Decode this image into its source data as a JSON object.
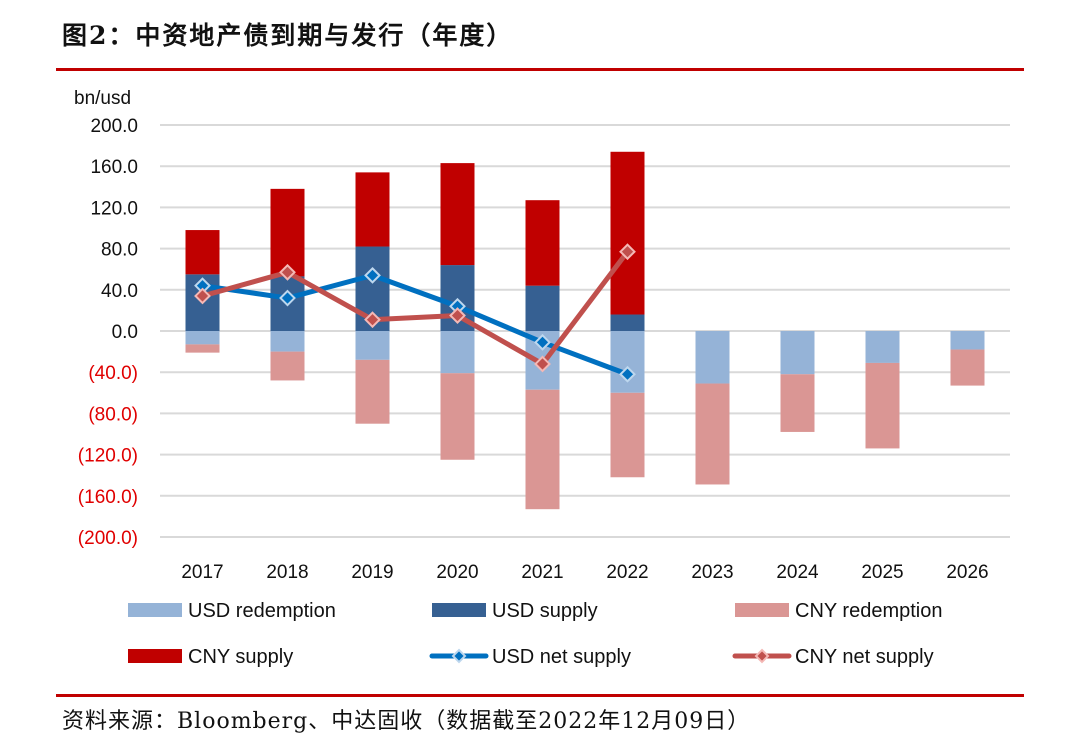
{
  "figure": {
    "title": "图2：中资地产债到期与发行（年度）",
    "source": "资料来源：Bloomberg、中达固收（数据截至2022年12月09日）"
  },
  "chart_data": {
    "type": "bar",
    "subtype": "stacked bar with line overlay",
    "title": "图2：中资地产债到期与发行（年度）",
    "ylabel": "bn/usd",
    "xlabel": "",
    "ylim": [
      -200,
      200
    ],
    "yticks": [
      200,
      160,
      120,
      80,
      40,
      0,
      -40,
      -80,
      -120,
      -160,
      -200
    ],
    "ytick_labels": [
      "200.0",
      "160.0",
      "120.0",
      "80.0",
      "40.0",
      "0.0",
      "(40.0)",
      "(80.0)",
      "(120.0)",
      "(160.0)",
      "(200.0)"
    ],
    "negative_tick_color": "#e00000",
    "grid": true,
    "categories": [
      "2017",
      "2018",
      "2019",
      "2020",
      "2021",
      "2022",
      "2023",
      "2024",
      "2025",
      "2026"
    ],
    "series": [
      {
        "name": "USD redemption",
        "kind": "bar",
        "stack": "negative",
        "color": "#95b3d7",
        "values": [
          -13,
          -20,
          -28,
          -41,
          -57,
          -60,
          -51,
          -42,
          -31,
          -18
        ]
      },
      {
        "name": "USD supply",
        "kind": "bar",
        "stack": "positive",
        "color": "#366092",
        "values": [
          55,
          53,
          82,
          64,
          44,
          16,
          null,
          null,
          null,
          null
        ]
      },
      {
        "name": "CNY redemption",
        "kind": "bar",
        "stack": "negative",
        "color": "#da9694",
        "values": [
          -8,
          -28,
          -62,
          -84,
          -116,
          -82,
          -98,
          -56,
          -83,
          -35
        ]
      },
      {
        "name": "CNY supply",
        "kind": "bar",
        "stack": "positive",
        "color": "#c00000",
        "values": [
          43,
          85,
          72,
          99,
          83,
          158,
          null,
          null,
          null,
          null
        ]
      },
      {
        "name": "USD net supply",
        "kind": "line",
        "color": "#0070c0",
        "values": [
          44,
          32,
          54,
          24,
          -11,
          -42,
          null,
          null,
          null,
          null
        ]
      },
      {
        "name": "CNY net supply",
        "kind": "line",
        "color": "#c0504d",
        "values": [
          34,
          57,
          11,
          15,
          -32,
          77,
          null,
          null,
          null,
          null
        ]
      }
    ],
    "legend": {
      "position": "bottom",
      "entries": [
        "USD redemption",
        "USD supply",
        "CNY redemption",
        "CNY supply",
        "USD net supply",
        "CNY net supply"
      ]
    }
  }
}
